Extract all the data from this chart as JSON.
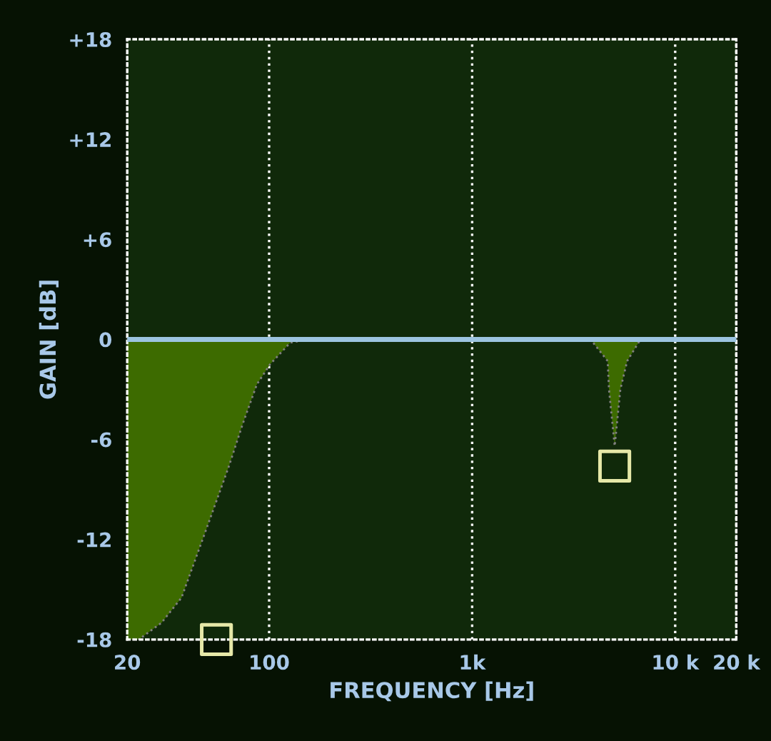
{
  "chart_data": {
    "type": "area",
    "xlabel": "FREQUENCY [Hz]",
    "ylabel": "GAIN [dB]",
    "series": [
      {
        "color": "#3d6b00",
        "x": [
          20,
          22.8,
          29.5,
          37,
          48,
          63,
          74,
          87,
          101,
          127,
          155,
          3830,
          4650,
          4720,
          5036,
          5370,
          5800,
          6750,
          20000
        ],
        "values": [
          -18,
          -18,
          -17,
          -15.5,
          -11.7,
          -7.7,
          -5.1,
          -2.7,
          -1.5,
          -0.2,
          0,
          0,
          -1.3,
          -3,
          -6.4,
          -3,
          -1.3,
          0,
          0
        ]
      },
      {
        "type": "scatter",
        "color": "#e6e8a8",
        "marker": "square",
        "x": [
          55,
          5036
        ],
        "values": [
          -18,
          -7.6
        ]
      }
    ],
    "log": "x",
    "xlim": [
      20,
      20000
    ],
    "ylim": [
      -18,
      18
    ],
    "xticks": [
      20,
      100,
      {
        "value": 1000,
        "label": "1k"
      },
      {
        "value": 10000,
        "label": "10 k"
      },
      {
        "value": 20000,
        "label": "20 k"
      }
    ],
    "yticks": [
      {
        "value": -18,
        "label": "-18"
      },
      {
        "value": -12,
        "label": "-12"
      },
      {
        "value": -6,
        "label": "-6"
      },
      0,
      {
        "value": 6,
        "label": "+6"
      },
      {
        "value": 12,
        "label": "+12"
      },
      {
        "value": 18,
        "label": "+18"
      }
    ],
    "grid": "x",
    "line_style": "dotted",
    "ref_lines": [
      {
        "axis": "y",
        "value": 0,
        "color": "#9cc4e0",
        "line_style": "solid"
      }
    ]
  }
}
